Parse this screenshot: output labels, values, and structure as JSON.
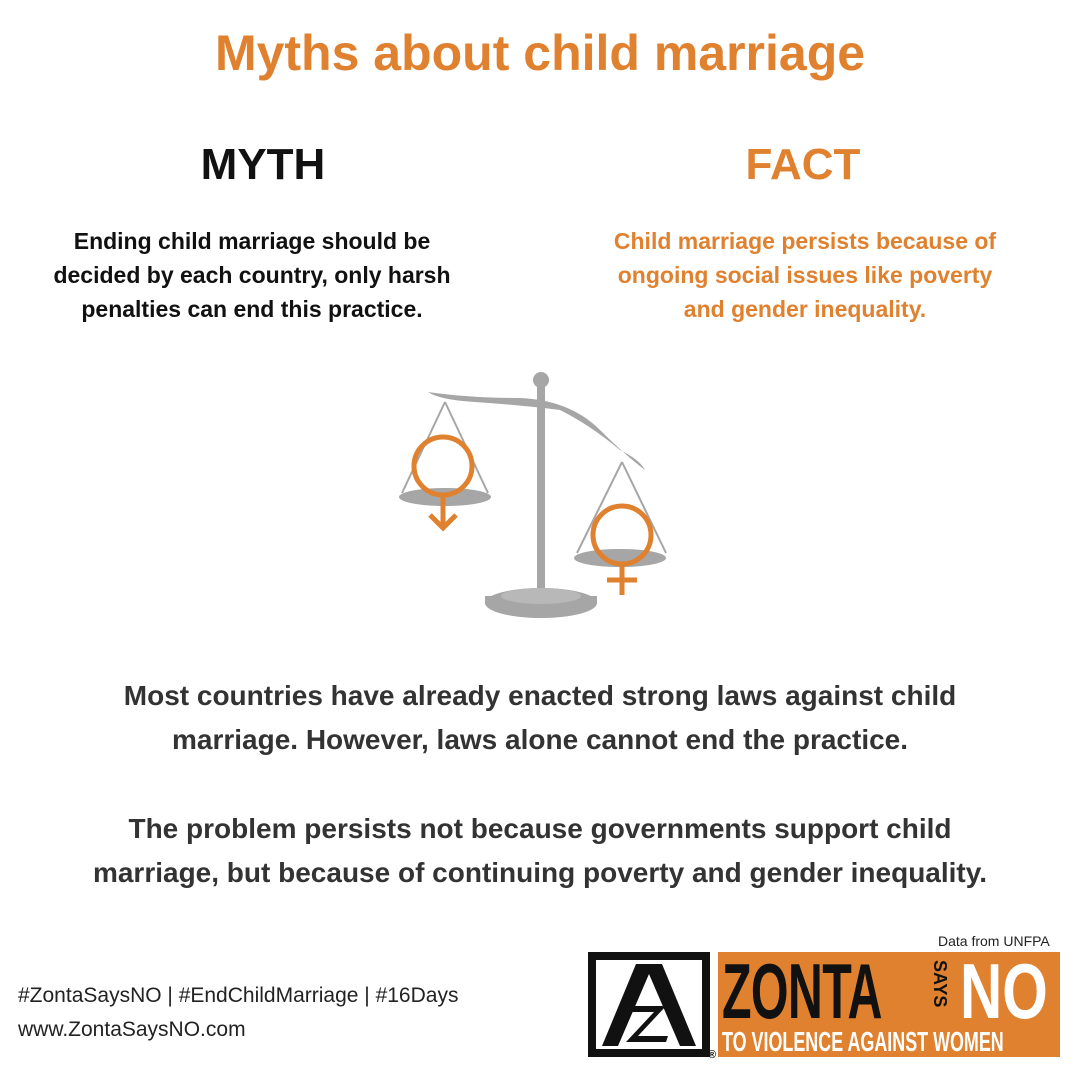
{
  "title": "Myths about child marriage",
  "myth": {
    "heading": "MYTH",
    "lines": [
      "Ending child marriage should be",
      "decided by each country, only harsh",
      "penalties can end this practice."
    ]
  },
  "fact": {
    "heading": "FACT",
    "lines": [
      "Child marriage persists because of",
      "ongoing social issues like poverty",
      "and gender inequality."
    ]
  },
  "body": [
    {
      "lines": [
        "Most countries have already enacted strong laws against child",
        "marriage. However, laws alone cannot end the practice."
      ]
    },
    {
      "lines": [
        "The problem persists not because governments support child",
        "marriage, but because of continuing poverty and gender inequality."
      ]
    }
  ],
  "source": "Data from UNFPA",
  "footer": {
    "hashtags": "#ZontaSaysNO | #EndChildMarriage | #16Days",
    "url": "www.ZontaSaysNO.com"
  },
  "logo": {
    "zonta": "ZONTA",
    "says": "SAYS",
    "no": "NO",
    "tagline": "TO VIOLENCE AGAINST WOMEN",
    "registered": "®"
  }
}
